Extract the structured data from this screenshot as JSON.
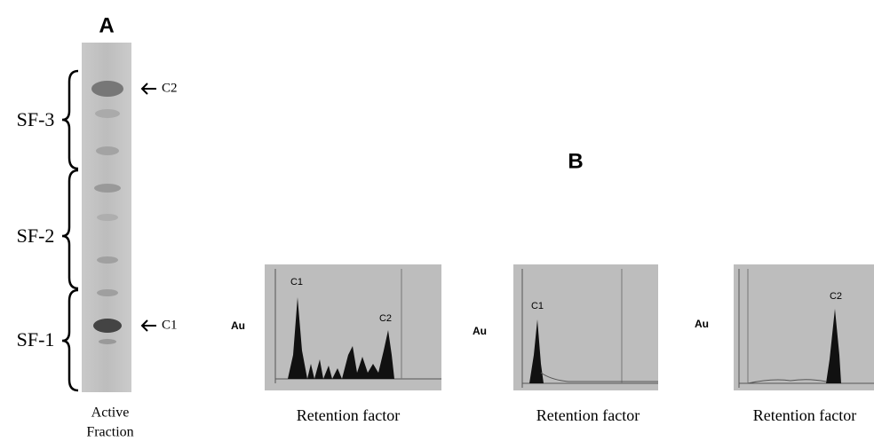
{
  "panel_a": {
    "label": "A",
    "markers": [
      "C2",
      "C1"
    ],
    "subfractions": [
      "SF-3",
      "SF-2",
      "SF-1"
    ],
    "lane_label": [
      "Active",
      "Fraction"
    ]
  },
  "panel_b": {
    "label": "B",
    "plots": [
      {
        "y_label": "Au",
        "x_label": "Retention factor",
        "peaks": [
          "C1",
          "C2"
        ]
      },
      {
        "y_label": "Au",
        "x_label": "Retention factor",
        "peaks": [
          "C1"
        ]
      },
      {
        "y_label": "Au",
        "x_label": "Retention factor",
        "peaks": [
          "C2"
        ]
      }
    ]
  }
}
